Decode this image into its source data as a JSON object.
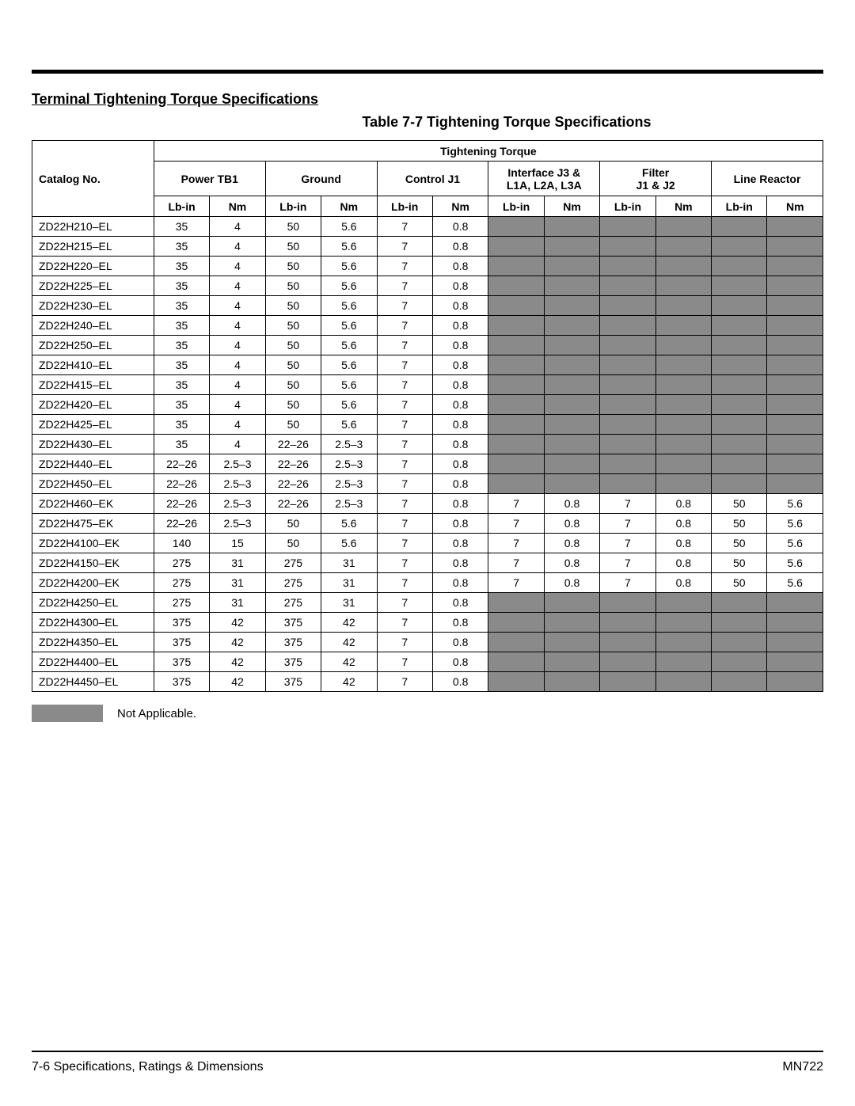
{
  "section_title": "Terminal Tightening Torque Specifications",
  "table_caption": "Table 7-7  Tightening Torque Specifications",
  "header": {
    "catalog": "Catalog No.",
    "top_span": "Tightening Torque",
    "groups": [
      {
        "label": "Power TB1"
      },
      {
        "label": "Ground"
      },
      {
        "label": "Control J1"
      },
      {
        "label": "Interface J3 &\nL1A, L2A, L3A"
      },
      {
        "label": "Filter\nJ1 & J2"
      },
      {
        "label": "Line Reactor"
      }
    ],
    "subcols": [
      "Lb-in",
      "Nm"
    ]
  },
  "rows": [
    {
      "id": "ZD22H210–EL",
      "cells": [
        "35",
        "4",
        "50",
        "5.6",
        "7",
        "0.8",
        null,
        null,
        null,
        null,
        null,
        null
      ]
    },
    {
      "id": "ZD22H215–EL",
      "cells": [
        "35",
        "4",
        "50",
        "5.6",
        "7",
        "0.8",
        null,
        null,
        null,
        null,
        null,
        null
      ]
    },
    {
      "id": "ZD22H220–EL",
      "cells": [
        "35",
        "4",
        "50",
        "5.6",
        "7",
        "0.8",
        null,
        null,
        null,
        null,
        null,
        null
      ]
    },
    {
      "id": "ZD22H225–EL",
      "cells": [
        "35",
        "4",
        "50",
        "5.6",
        "7",
        "0.8",
        null,
        null,
        null,
        null,
        null,
        null
      ]
    },
    {
      "id": "ZD22H230–EL",
      "cells": [
        "35",
        "4",
        "50",
        "5.6",
        "7",
        "0.8",
        null,
        null,
        null,
        null,
        null,
        null
      ]
    },
    {
      "id": "ZD22H240–EL",
      "cells": [
        "35",
        "4",
        "50",
        "5.6",
        "7",
        "0.8",
        null,
        null,
        null,
        null,
        null,
        null
      ]
    },
    {
      "id": "ZD22H250–EL",
      "cells": [
        "35",
        "4",
        "50",
        "5.6",
        "7",
        "0.8",
        null,
        null,
        null,
        null,
        null,
        null
      ]
    },
    {
      "id": "ZD22H410–EL",
      "cells": [
        "35",
        "4",
        "50",
        "5.6",
        "7",
        "0.8",
        null,
        null,
        null,
        null,
        null,
        null
      ]
    },
    {
      "id": "ZD22H415–EL",
      "cells": [
        "35",
        "4",
        "50",
        "5.6",
        "7",
        "0.8",
        null,
        null,
        null,
        null,
        null,
        null
      ]
    },
    {
      "id": "ZD22H420–EL",
      "cells": [
        "35",
        "4",
        "50",
        "5.6",
        "7",
        "0.8",
        null,
        null,
        null,
        null,
        null,
        null
      ]
    },
    {
      "id": "ZD22H425–EL",
      "cells": [
        "35",
        "4",
        "50",
        "5.6",
        "7",
        "0.8",
        null,
        null,
        null,
        null,
        null,
        null
      ]
    },
    {
      "id": "ZD22H430–EL",
      "cells": [
        "35",
        "4",
        "22–26",
        "2.5–3",
        "7",
        "0.8",
        null,
        null,
        null,
        null,
        null,
        null
      ]
    },
    {
      "id": "ZD22H440–EL",
      "cells": [
        "22–26",
        "2.5–3",
        "22–26",
        "2.5–3",
        "7",
        "0.8",
        null,
        null,
        null,
        null,
        null,
        null
      ]
    },
    {
      "id": "ZD22H450–EL",
      "cells": [
        "22–26",
        "2.5–3",
        "22–26",
        "2.5–3",
        "7",
        "0.8",
        null,
        null,
        null,
        null,
        null,
        null
      ]
    },
    {
      "id": "ZD22H460–EK",
      "cells": [
        "22–26",
        "2.5–3",
        "22–26",
        "2.5–3",
        "7",
        "0.8",
        "7",
        "0.8",
        "7",
        "0.8",
        "50",
        "5.6"
      ]
    },
    {
      "id": "ZD22H475–EK",
      "cells": [
        "22–26",
        "2.5–3",
        "50",
        "5.6",
        "7",
        "0.8",
        "7",
        "0.8",
        "7",
        "0.8",
        "50",
        "5.6"
      ]
    },
    {
      "id": "ZD22H4100–EK",
      "cells": [
        "140",
        "15",
        "50",
        "5.6",
        "7",
        "0.8",
        "7",
        "0.8",
        "7",
        "0.8",
        "50",
        "5.6"
      ]
    },
    {
      "id": "ZD22H4150–EK",
      "cells": [
        "275",
        "31",
        "275",
        "31",
        "7",
        "0.8",
        "7",
        "0.8",
        "7",
        "0.8",
        "50",
        "5.6"
      ]
    },
    {
      "id": "ZD22H4200–EK",
      "cells": [
        "275",
        "31",
        "275",
        "31",
        "7",
        "0.8",
        "7",
        "0.8",
        "7",
        "0.8",
        "50",
        "5.6"
      ]
    },
    {
      "id": "ZD22H4250–EL",
      "cells": [
        "275",
        "31",
        "275",
        "31",
        "7",
        "0.8",
        null,
        null,
        null,
        null,
        null,
        null
      ]
    },
    {
      "id": "ZD22H4300–EL",
      "cells": [
        "375",
        "42",
        "375",
        "42",
        "7",
        "0.8",
        null,
        null,
        null,
        null,
        null,
        null
      ]
    },
    {
      "id": "ZD22H4350–EL",
      "cells": [
        "375",
        "42",
        "375",
        "42",
        "7",
        "0.8",
        null,
        null,
        null,
        null,
        null,
        null
      ]
    },
    {
      "id": "ZD22H4400–EL",
      "cells": [
        "375",
        "42",
        "375",
        "42",
        "7",
        "0.8",
        null,
        null,
        null,
        null,
        null,
        null
      ]
    },
    {
      "id": "ZD22H4450–EL",
      "cells": [
        "375",
        "42",
        "375",
        "42",
        "7",
        "0.8",
        null,
        null,
        null,
        null,
        null,
        null
      ]
    }
  ],
  "legend_text": "Not Applicable.",
  "footer": {
    "left": "7-6 Specifications, Ratings & Dimensions",
    "right": "MN722"
  },
  "colors": {
    "na_fill": "#8a8a8a",
    "rule": "#000000",
    "text": "#000000",
    "bg": "#ffffff"
  },
  "col_widths_pct": [
    15.4,
    7.05,
    7.05,
    7.05,
    7.05,
    7.05,
    7.05,
    7.05,
    7.05,
    7.05,
    7.05,
    7.05,
    7.05
  ]
}
